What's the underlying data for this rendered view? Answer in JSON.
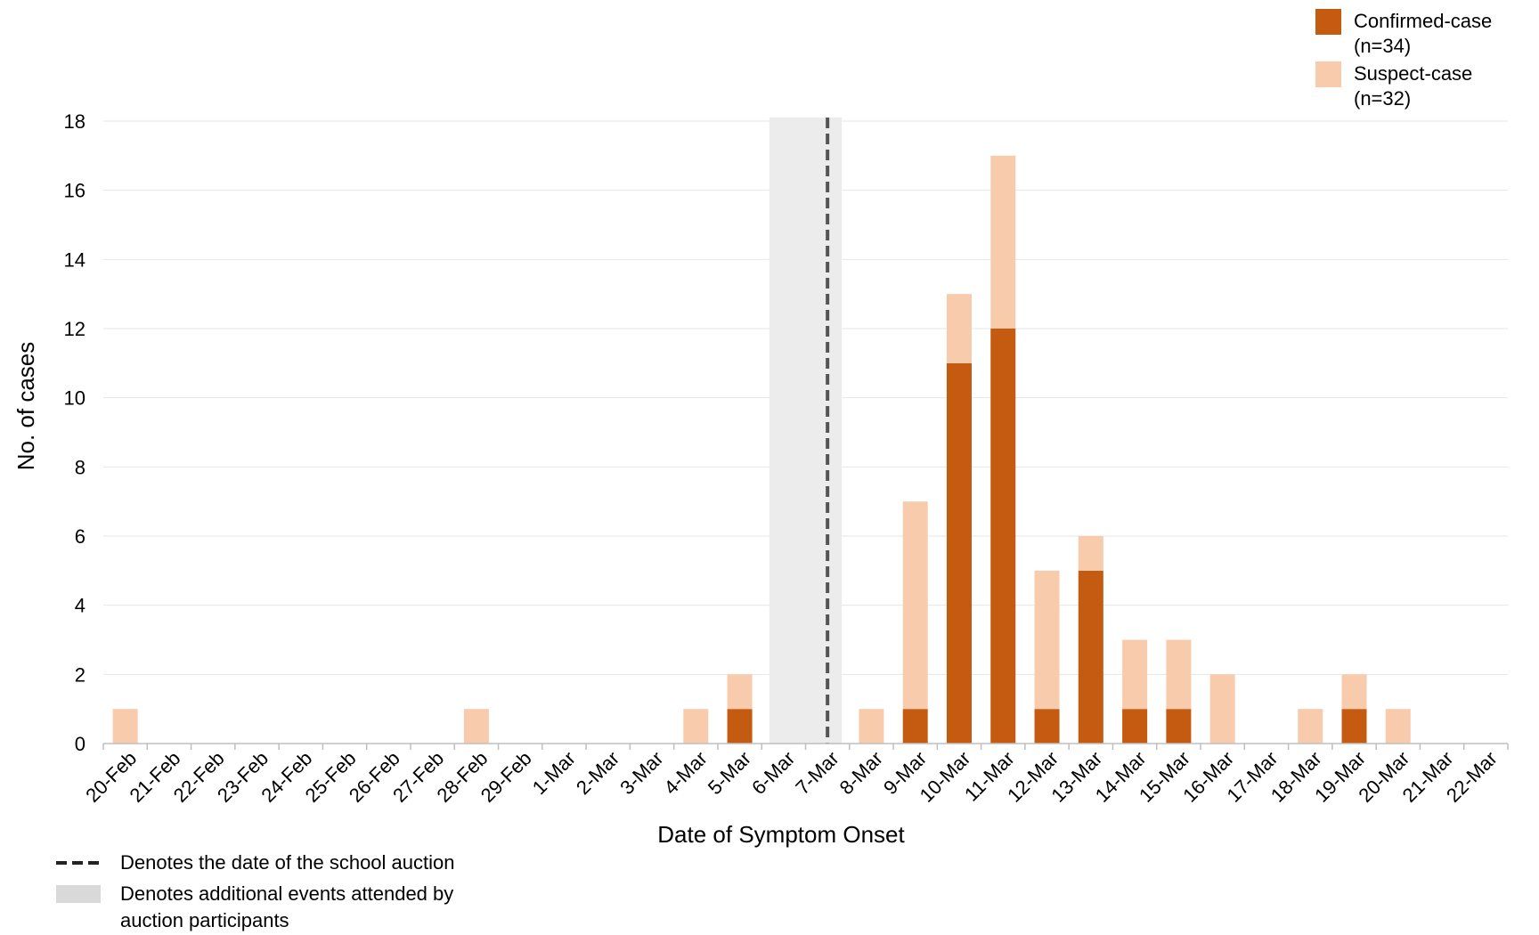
{
  "chart_data": {
    "type": "bar",
    "stacked": true,
    "categories": [
      "20-Feb",
      "21-Feb",
      "22-Feb",
      "23-Feb",
      "24-Feb",
      "25-Feb",
      "26-Feb",
      "27-Feb",
      "28-Feb",
      "29-Feb",
      "1-Mar",
      "2-Mar",
      "3-Mar",
      "4-Mar",
      "5-Mar",
      "6-Mar",
      "7-Mar",
      "8-Mar",
      "9-Mar",
      "10-Mar",
      "11-Mar",
      "12-Mar",
      "13-Mar",
      "14-Mar",
      "15-Mar",
      "16-Mar",
      "17-Mar",
      "18-Mar",
      "19-Mar",
      "20-Mar",
      "21-Mar",
      "22-Mar"
    ],
    "series": [
      {
        "name": "Confirmed-case",
        "count_label": "(n=34)",
        "color": "#c55a11",
        "values": [
          0,
          0,
          0,
          0,
          0,
          0,
          0,
          0,
          0,
          0,
          0,
          0,
          0,
          0,
          1,
          0,
          0,
          0,
          1,
          11,
          12,
          1,
          5,
          1,
          1,
          0,
          0,
          0,
          1,
          0,
          0,
          0
        ]
      },
      {
        "name": "Suspect-case",
        "count_label": "(n=32)",
        "color": "#f8cbad",
        "values": [
          1,
          0,
          0,
          0,
          0,
          0,
          0,
          0,
          1,
          0,
          0,
          0,
          0,
          1,
          1,
          0,
          0,
          1,
          6,
          2,
          5,
          4,
          1,
          2,
          2,
          2,
          0,
          1,
          1,
          1,
          0,
          0
        ]
      }
    ],
    "title": "",
    "xlabel": "Date of Symptom Onset",
    "ylabel": "No. of cases",
    "ylim": [
      0,
      18
    ],
    "yticks": [
      0,
      2,
      4,
      6,
      8,
      10,
      12,
      14,
      16,
      18
    ],
    "grid": true,
    "legend_position": "top-right",
    "shaded_region": {
      "from": "6-Mar",
      "to": "7-Mar",
      "color": "#ececec"
    },
    "event_line": {
      "at": "7-Mar",
      "style": "dashed",
      "color": "#555555"
    },
    "annotations": [
      {
        "marker": "dashed-line",
        "text": "Denotes the date of the school auction"
      },
      {
        "marker": "gray-box",
        "text_lines": [
          "Denotes additional events attended by",
          "auction participants"
        ]
      }
    ]
  }
}
